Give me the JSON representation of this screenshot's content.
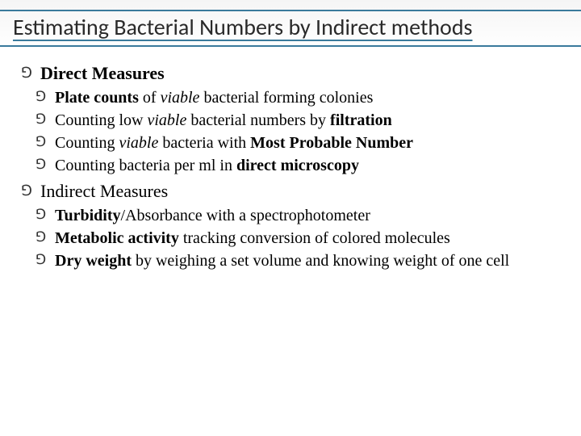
{
  "title": "Estimating Bacterial Numbers by Indirect methods",
  "sections": [
    {
      "heading_html": "<span class='bold'>Direct Measures</span>",
      "items": [
        "<span class='bold'>Plate counts</span> of <span class='italic'>viable</span> bacterial forming colonies",
        "Counting low <span class='italic'>viable</span> bacterial numbers by <span class='bold'>filtration</span>",
        "Counting <span class='italic'>viable</span> bacteria with <span class='bold'>Most Probable Number</span>",
        "Counting bacteria per ml in <span class='bold'>direct microscopy</span>"
      ]
    },
    {
      "heading_html": "Indirect Measures",
      "items": [
        "<span class='bold'>Turbidity</span>/Absorbance with a spectrophotometer",
        "<span class='bold'>Metabolic activity</span> tracking conversion of colored molecules",
        "<span class='bold'>Dry weight</span> by weighing a set volume and knowing weight of one cell"
      ]
    }
  ],
  "colors": {
    "header_line": "#3a7a9c",
    "text": "#000000",
    "title_text": "#2a2a2a",
    "background": "#ffffff"
  },
  "bullet_glyph": "∁"
}
